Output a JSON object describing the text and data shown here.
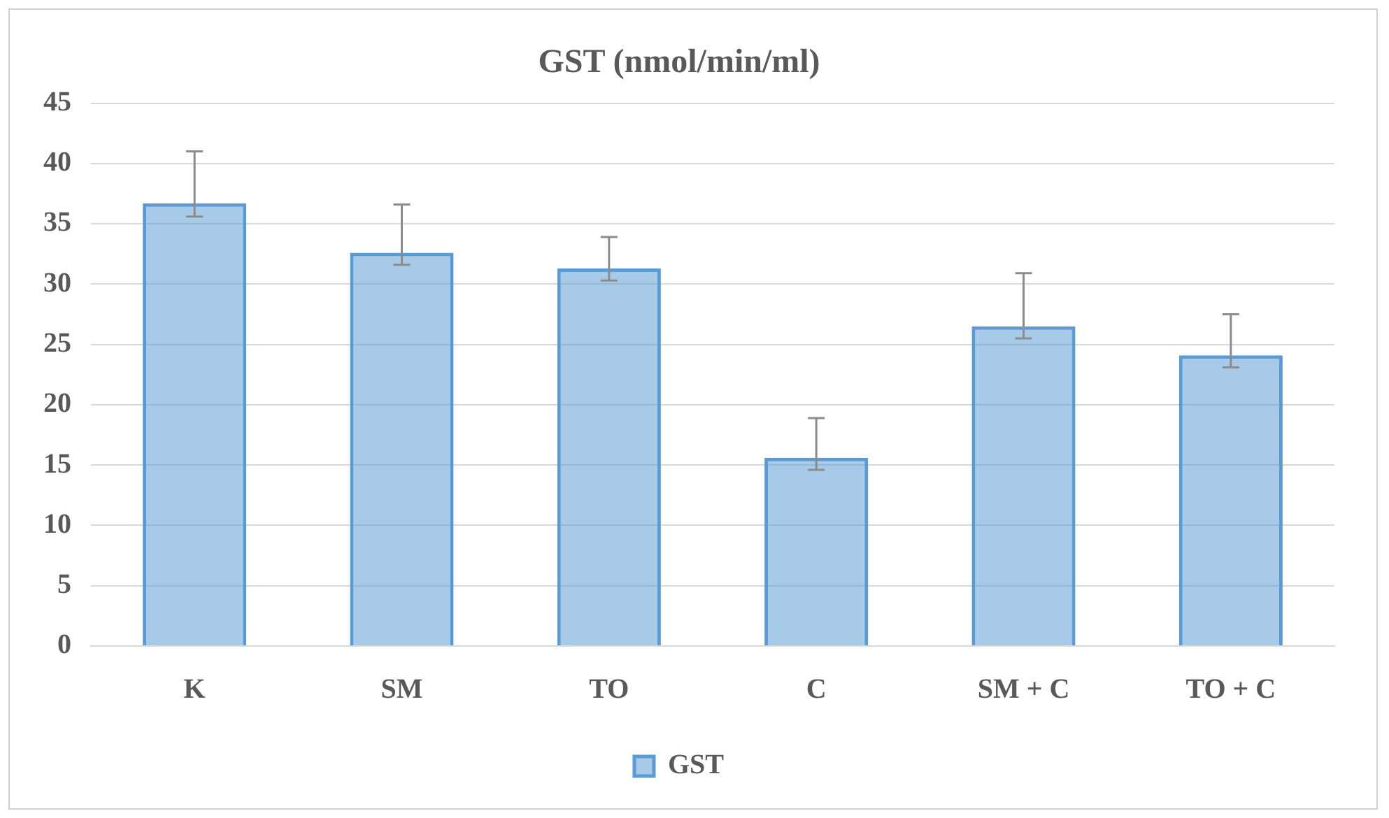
{
  "chart_data": {
    "type": "bar",
    "title": "GST (nmol/min/ml)",
    "categories": [
      "K",
      "SM",
      "TO",
      "C",
      "SM + C",
      "TO + C"
    ],
    "series": [
      {
        "name": "GST",
        "color": "#5b9bd5",
        "values": [
          36.7,
          32.6,
          31.3,
          15.6,
          26.5,
          24.1
        ],
        "errors": [
          [
            35.6,
            41.0
          ],
          [
            31.6,
            36.6
          ],
          [
            30.3,
            33.9
          ],
          [
            14.6,
            18.9
          ],
          [
            25.5,
            30.9
          ],
          [
            23.1,
            27.5
          ]
        ]
      }
    ],
    "ylim": [
      0,
      45
    ],
    "yticks": [
      0,
      5,
      10,
      15,
      20,
      25,
      30,
      35,
      40,
      45
    ],
    "grid": "y",
    "legend": "bottom"
  }
}
